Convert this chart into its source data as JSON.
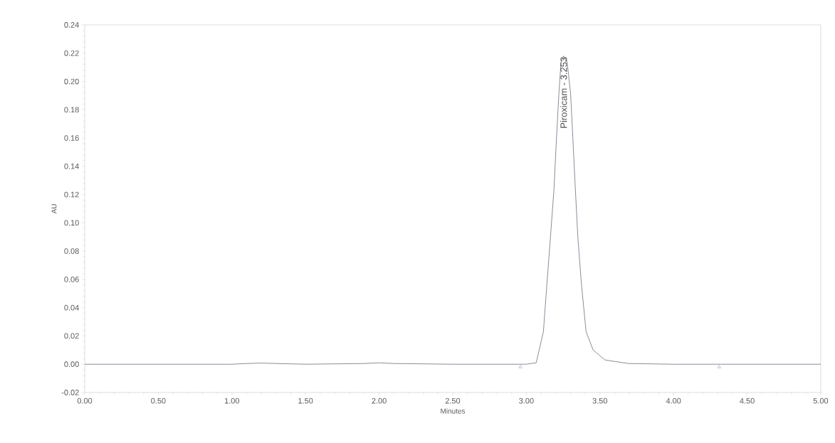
{
  "chart_data": {
    "type": "line",
    "xlabel": "Minutes",
    "ylabel": "AU",
    "xlim": [
      0,
      5
    ],
    "ylim": [
      -0.02,
      0.24
    ],
    "xticks": [
      {
        "value": 0,
        "label": "0.00"
      },
      {
        "value": 0.5,
        "label": "0.50"
      },
      {
        "value": 1,
        "label": "1.00"
      },
      {
        "value": 1.5,
        "label": "1.50"
      },
      {
        "value": 2,
        "label": "2.00"
      },
      {
        "value": 2.5,
        "label": "2.50"
      },
      {
        "value": 3,
        "label": "3.00"
      },
      {
        "value": 3.5,
        "label": "3.50"
      },
      {
        "value": 4,
        "label": "4.00"
      },
      {
        "value": 4.5,
        "label": "4.50"
      },
      {
        "value": 5,
        "label": "5.00"
      }
    ],
    "yticks": [
      {
        "value": -0.02,
        "label": "-0.02"
      },
      {
        "value": 0,
        "label": "0.00"
      },
      {
        "value": 0.02,
        "label": "0.02"
      },
      {
        "value": 0.04,
        "label": "0.04"
      },
      {
        "value": 0.06,
        "label": "0.06"
      },
      {
        "value": 0.08,
        "label": "0.08"
      },
      {
        "value": 0.1,
        "label": "0.10"
      },
      {
        "value": 0.12,
        "label": "0.12"
      },
      {
        "value": 0.14,
        "label": "0.14"
      },
      {
        "value": 0.16,
        "label": "0.16"
      },
      {
        "value": 0.18,
        "label": "0.18"
      },
      {
        "value": 0.2,
        "label": "0.20"
      },
      {
        "value": 0.22,
        "label": "0.22"
      },
      {
        "value": 0.24,
        "label": "0.24"
      }
    ],
    "series": [
      {
        "color": "#6b7080",
        "x": [
          0,
          0.5,
          1.0,
          1.1,
          1.2,
          1.3,
          1.5,
          1.9,
          2.0,
          2.1,
          2.5,
          2.9,
          3.0,
          3.067,
          3.116,
          3.14,
          3.164,
          3.188,
          3.204,
          3.221,
          3.236,
          3.253,
          3.277,
          3.301,
          3.317,
          3.333,
          3.35,
          3.374,
          3.406,
          3.454,
          3.535,
          3.694,
          4.0,
          4.5,
          5.0
        ],
        "values": [
          0,
          0,
          0,
          0.0005,
          0.0008,
          0.0005,
          0,
          0.0005,
          0.001,
          0.0005,
          0,
          0,
          0,
          0.001,
          0.023,
          0.057,
          0.09,
          0.124,
          0.158,
          0.191,
          0.214,
          0.218,
          0.214,
          0.191,
          0.158,
          0.124,
          0.09,
          0.057,
          0.023,
          0.01,
          0.003,
          0.0005,
          0,
          0,
          0
        ]
      },
      {
        "type": "scatter",
        "marker": "triangle",
        "color": "#6b7080",
        "x": [
          2.96,
          4.31
        ],
        "values": [
          -0.002,
          -0.002
        ]
      }
    ],
    "annotations": [
      {
        "text": "Piroxicam - 3.253",
        "x": 3.253,
        "y": 0.218
      }
    ]
  }
}
